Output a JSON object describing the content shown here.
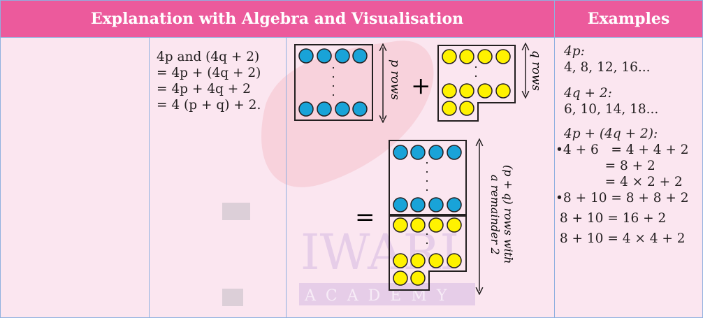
{
  "header": {
    "explanation_title": "Explanation with Algebra and Visualisation",
    "examples_title": "Examples"
  },
  "algebra": {
    "lines": [
      "4p and (4q + 2)",
      "= 4p + (4q + 2)",
      "= 4p + 4q + 2",
      "= 4 (p + q) + 2."
    ]
  },
  "diagram": {
    "p_label": "p rows",
    "q_label": "q rows",
    "plus": "+",
    "equals": "=",
    "sum_label_line1": "(p + q) rows with",
    "sum_label_line2": "a remainder 2",
    "colors": {
      "blue": "#19a3d8",
      "yellow": "#fff200"
    }
  },
  "examples": {
    "lines": [
      "4p:",
      "4, 8, 12, 16...",
      "4q + 2:",
      "6, 10, 14, 18...",
      "4p + (4q + 2):",
      "•4 + 6   = 4 + 4 + 2",
      "            = 8 + 2",
      "            = 4 × 2 + 2",
      "•8 + 10 = 8 + 8 + 2",
      " 8 + 10 = 16 + 2",
      " 8 + 10 = 4 × 4 + 2"
    ]
  },
  "watermark": {
    "text1": "IWARI",
    "text2": "ACADEMY"
  }
}
